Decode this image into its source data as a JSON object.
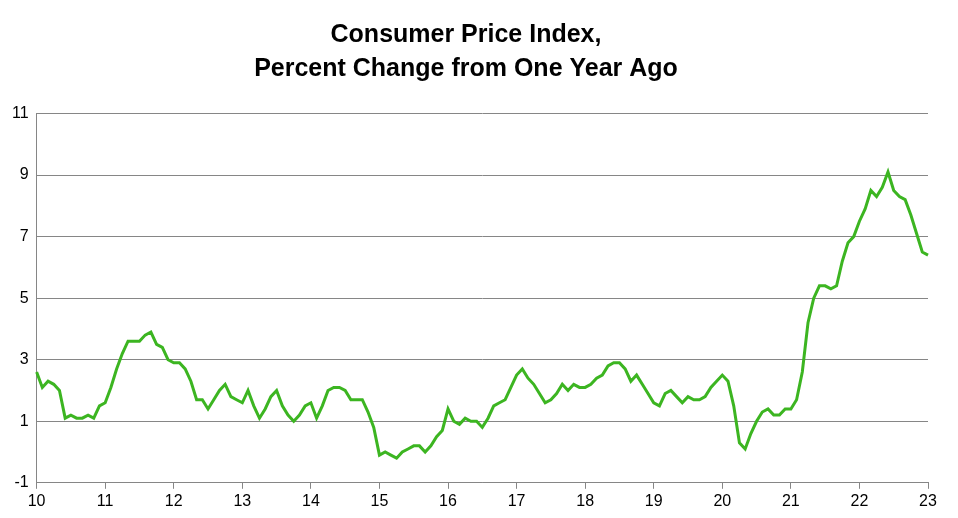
{
  "chart_data": {
    "type": "line",
    "title": [
      "Consumer Price Index,",
      "Percent Change from One Year Ago"
    ],
    "categories": [
      "10",
      null,
      null,
      null,
      null,
      null,
      null,
      null,
      null,
      null,
      null,
      null,
      "11",
      null,
      null,
      null,
      null,
      null,
      null,
      null,
      null,
      null,
      null,
      null,
      "12",
      null,
      null,
      null,
      null,
      null,
      null,
      null,
      null,
      null,
      null,
      null,
      "13",
      null,
      null,
      null,
      null,
      null,
      null,
      null,
      null,
      null,
      null,
      null,
      "14",
      null,
      null,
      null,
      null,
      null,
      null,
      null,
      null,
      null,
      null,
      null,
      "15",
      null,
      null,
      null,
      null,
      null,
      null,
      null,
      null,
      null,
      null,
      null,
      "16",
      null,
      null,
      null,
      null,
      null,
      null,
      null,
      null,
      null,
      null,
      null,
      "17",
      null,
      null,
      null,
      null,
      null,
      null,
      null,
      null,
      null,
      null,
      null,
      "18",
      null,
      null,
      null,
      null,
      null,
      null,
      null,
      null,
      null,
      null,
      null,
      "19",
      null,
      null,
      null,
      null,
      null,
      null,
      null,
      null,
      null,
      null,
      null,
      "20",
      null,
      null,
      null,
      null,
      null,
      null,
      null,
      null,
      null,
      null,
      null,
      "21",
      null,
      null,
      null,
      null,
      null,
      null,
      null,
      null,
      null,
      null,
      null,
      "22",
      null,
      null,
      null,
      null,
      null,
      null,
      null,
      null,
      null,
      null,
      null,
      "23"
    ],
    "values": [
      2.6,
      2.1,
      2.3,
      2.2,
      2.0,
      1.1,
      1.2,
      1.1,
      1.1,
      1.2,
      1.1,
      1.5,
      1.6,
      2.1,
      2.7,
      3.2,
      3.6,
      3.6,
      3.6,
      3.8,
      3.9,
      3.5,
      3.4,
      3.0,
      2.9,
      2.9,
      2.7,
      2.3,
      1.7,
      1.7,
      1.4,
      1.7,
      2.0,
      2.2,
      1.8,
      1.7,
      1.6,
      2.0,
      1.5,
      1.1,
      1.4,
      1.8,
      2.0,
      1.5,
      1.2,
      1.0,
      1.2,
      1.5,
      1.6,
      1.1,
      1.5,
      2.0,
      2.1,
      2.1,
      2.0,
      1.7,
      1.7,
      1.7,
      1.3,
      0.8,
      -0.1,
      0.0,
      -0.1,
      -0.2,
      0.0,
      0.1,
      0.2,
      0.2,
      0.0,
      0.2,
      0.5,
      0.7,
      1.4,
      1.0,
      0.9,
      1.1,
      1.0,
      1.0,
      0.8,
      1.1,
      1.5,
      1.6,
      1.7,
      2.1,
      2.5,
      2.7,
      2.4,
      2.2,
      1.9,
      1.6,
      1.7,
      1.9,
      2.2,
      2.0,
      2.2,
      2.1,
      2.1,
      2.2,
      2.4,
      2.5,
      2.8,
      2.9,
      2.9,
      2.7,
      2.3,
      2.5,
      2.2,
      1.9,
      1.6,
      1.5,
      1.9,
      2.0,
      1.8,
      1.6,
      1.8,
      1.7,
      1.7,
      1.8,
      2.1,
      2.3,
      2.5,
      2.3,
      1.5,
      0.3,
      0.1,
      0.6,
      1.0,
      1.3,
      1.4,
      1.2,
      1.2,
      1.4,
      1.4,
      1.7,
      2.6,
      4.2,
      5.0,
      5.4,
      5.4,
      5.3,
      5.4,
      6.2,
      6.8,
      7.0,
      7.5,
      7.9,
      8.5,
      8.3,
      8.6,
      9.1,
      8.5,
      8.3,
      8.2,
      7.7,
      7.1,
      6.5,
      6.4
    ],
    "color": "#3cb521",
    "ylim": [
      -1,
      11
    ],
    "yticks": [
      -1,
      1,
      3,
      5,
      7,
      9,
      11
    ],
    "grid": true
  }
}
